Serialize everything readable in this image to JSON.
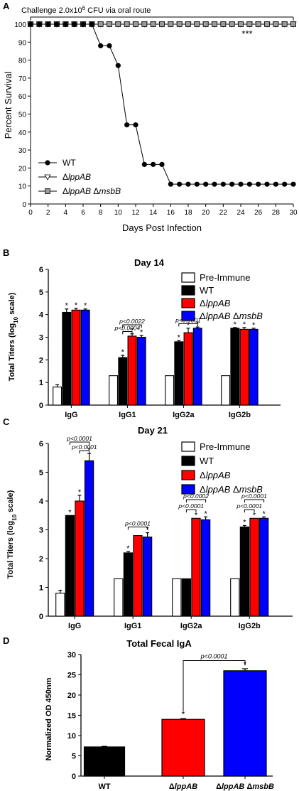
{
  "chart_data": [
    {
      "panel": "A",
      "type": "line",
      "annotation": "Challenge 2.0x10",
      "annotation_sup": "6",
      "annotation_tail": " CFU  via oral route",
      "significance": "***",
      "xlabel": "Days Post Infection",
      "ylabel": "Percent Survival",
      "xlim": [
        0,
        30
      ],
      "ylim": [
        0,
        100
      ],
      "xticks": [
        0,
        2,
        4,
        6,
        8,
        10,
        12,
        14,
        16,
        18,
        20,
        22,
        24,
        26,
        28,
        30
      ],
      "yticks": [
        0,
        10,
        20,
        30,
        40,
        50,
        60,
        70,
        80,
        90,
        100
      ],
      "series": [
        {
          "name": "WT",
          "marker": "circle",
          "color": "#000000",
          "x": [
            0,
            1,
            2,
            3,
            4,
            5,
            6,
            7,
            8,
            9,
            10,
            11,
            12,
            13,
            14,
            15,
            16,
            17,
            18,
            19,
            20,
            21,
            22,
            23,
            24,
            25,
            26,
            27,
            28,
            29,
            30
          ],
          "y": [
            100,
            100,
            100,
            100,
            100,
            100,
            100,
            100,
            88,
            88,
            77,
            44,
            44,
            22,
            22,
            22,
            11,
            11,
            11,
            11,
            11,
            11,
            11,
            11,
            11,
            11,
            11,
            11,
            11,
            11,
            11
          ]
        },
        {
          "name": "ΔlppAB",
          "marker": "triangle-down",
          "color": "#000000",
          "x": [
            0,
            1,
            2,
            3,
            4,
            5,
            6,
            7,
            8,
            9,
            10,
            11,
            12,
            13,
            14,
            15,
            16,
            17,
            18,
            19,
            20,
            21,
            22,
            23,
            24,
            25,
            26,
            27,
            28,
            29,
            30
          ],
          "y": [
            100,
            100,
            100,
            100,
            100,
            100,
            100,
            100,
            100,
            100,
            100,
            100,
            100,
            100,
            100,
            100,
            100,
            100,
            100,
            100,
            100,
            100,
            100,
            100,
            100,
            100,
            100,
            100,
            100,
            100,
            100
          ]
        },
        {
          "name": "ΔlppAB ΔmsbB",
          "marker": "square",
          "color": "#888888",
          "x": [
            0,
            1,
            2,
            3,
            4,
            5,
            6,
            7,
            8,
            9,
            10,
            11,
            12,
            13,
            14,
            15,
            16,
            17,
            18,
            19,
            20,
            21,
            22,
            23,
            24,
            25,
            26,
            27,
            28,
            29,
            30
          ],
          "y": [
            100,
            100,
            100,
            100,
            100,
            100,
            100,
            100,
            100,
            100,
            100,
            100,
            100,
            100,
            100,
            100,
            100,
            100,
            100,
            100,
            100,
            100,
            100,
            100,
            100,
            100,
            100,
            100,
            100,
            100,
            100
          ]
        }
      ]
    },
    {
      "panel": "B",
      "type": "bar",
      "title": "Day 14",
      "ylabel": "Total Titers (log",
      "ylabel_sub": "10",
      "ylabel_tail": " scale)",
      "ylim": [
        0,
        6
      ],
      "yticks": [
        0,
        1,
        2,
        3,
        4,
        5,
        6
      ],
      "categories": [
        "IgG",
        "IgG1",
        "IgG2a",
        "IgG2b"
      ],
      "series": [
        {
          "name": "Pre-Immune",
          "color": "#ffffff",
          "values": [
            0.8,
            1.3,
            1.3,
            1.3
          ],
          "err": [
            0.1,
            0,
            0,
            0
          ],
          "stars": [
            false,
            false,
            false,
            false
          ]
        },
        {
          "name": "WT",
          "color": "#000000",
          "values": [
            4.1,
            2.1,
            2.8,
            3.4
          ],
          "err": [
            0.15,
            0.1,
            0.05,
            0.03
          ],
          "stars": [
            true,
            true,
            true,
            true
          ]
        },
        {
          "name": "ΔlppAB",
          "color": "#ff0000",
          "values": [
            4.2,
            3.05,
            3.2,
            3.35
          ],
          "err": [
            0.08,
            0.1,
            0.2,
            0.08
          ],
          "stars": [
            true,
            true,
            true,
            true
          ]
        },
        {
          "name": "ΔlppAB ΔmsbB",
          "color": "#0000ff",
          "values": [
            4.2,
            3.0,
            3.4,
            3.35
          ],
          "err": [
            0.05,
            0.08,
            0.05,
            0.05
          ],
          "stars": [
            true,
            true,
            true,
            true
          ]
        }
      ],
      "brackets": [
        {
          "category": 1,
          "from": 1,
          "to": 3,
          "y": 3.55,
          "label": "p<0.0022"
        },
        {
          "category": 1,
          "from": 1,
          "to": 2,
          "y": 3.25,
          "label": "p<0.0004"
        },
        {
          "category": 2,
          "from": 1,
          "to": 3,
          "y": 3.6,
          "label": "p<0.0001"
        }
      ]
    },
    {
      "panel": "C",
      "type": "bar",
      "title": "Day 21",
      "ylabel": "Total Titers (log",
      "ylabel_sub": "10",
      "ylabel_tail": " scale)",
      "ylim": [
        0,
        6
      ],
      "yticks": [
        0,
        1,
        2,
        3,
        4,
        5,
        6
      ],
      "categories": [
        "IgG",
        "IgG1",
        "IgG2a",
        "IgG2b"
      ],
      "series": [
        {
          "name": "Pre-Immune",
          "color": "#ffffff",
          "values": [
            0.8,
            1.3,
            1.3,
            1.3
          ],
          "err": [
            0.1,
            0,
            0,
            0
          ],
          "stars": [
            false,
            false,
            false,
            false
          ]
        },
        {
          "name": "WT",
          "color": "#000000",
          "values": [
            3.5,
            2.2,
            1.3,
            3.1
          ],
          "err": [
            0,
            0.05,
            0,
            0.05
          ],
          "stars": [
            true,
            true,
            false,
            true
          ]
        },
        {
          "name": "ΔlppAB",
          "color": "#ff0000",
          "values": [
            4.0,
            2.8,
            3.4,
            3.4
          ],
          "err": [
            0.2,
            0,
            0,
            0
          ],
          "stars": [
            true,
            false,
            true,
            true
          ]
        },
        {
          "name": "ΔlppAB ΔmsbB",
          "color": "#0000ff",
          "values": [
            5.4,
            2.75,
            3.35,
            3.4
          ],
          "err": [
            0.25,
            0.15,
            0.1,
            0.05
          ],
          "stars": [
            true,
            true,
            true,
            true
          ]
        }
      ],
      "brackets": [
        {
          "category": 0,
          "from": 1,
          "to": 3,
          "y": 6.05,
          "label": "p<0.0001"
        },
        {
          "category": 0,
          "from": 2,
          "to": 3,
          "y": 5.75,
          "label": "p<0.0001"
        },
        {
          "category": 1,
          "from": 1,
          "to": 3,
          "y": 3.1,
          "label": "p<0.0001"
        },
        {
          "category": 2,
          "from": 1,
          "to": 3,
          "y": 4.05,
          "label": "p<0.0002"
        },
        {
          "category": 2,
          "from": 1,
          "to": 2,
          "y": 3.7,
          "label": "p<0.0001"
        },
        {
          "category": 3,
          "from": 1,
          "to": 3,
          "y": 4.05,
          "label": "p<0.0001"
        },
        {
          "category": 3,
          "from": 1,
          "to": 2,
          "y": 3.7,
          "label": "p<0.0001"
        }
      ]
    },
    {
      "panel": "D",
      "type": "bar",
      "title": "Total Fecal IgA",
      "ylabel": "Normalized OD 450nm",
      "ylim": [
        0,
        30
      ],
      "yticks": [
        0,
        5,
        10,
        15,
        20,
        25,
        30
      ],
      "categories": [
        "WT",
        "ΔlppAB",
        "ΔlppAB ΔmsbB"
      ],
      "colors": [
        "#000000",
        "#ff0000",
        "#0000ff"
      ],
      "values": [
        7.2,
        14.0,
        26.0
      ],
      "err": [
        0.15,
        0.2,
        0.5
      ],
      "stars": [
        false,
        true,
        true
      ],
      "bracket": {
        "from": 1,
        "to": 2,
        "y": 28.5,
        "label": "p<0.0001"
      }
    }
  ]
}
